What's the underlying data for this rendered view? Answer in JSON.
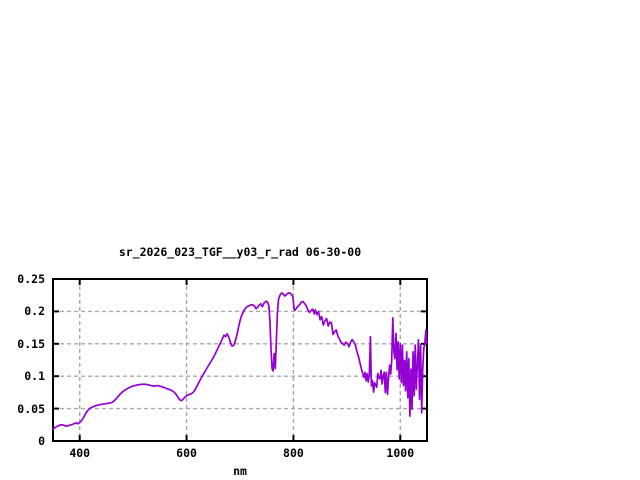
{
  "window": {
    "background": "#ffffff"
  },
  "chart_data": {
    "type": "line",
    "title": "sr_2026_023_TGF__y03_r_rad 06-30-00",
    "xlabel": "nm",
    "ylabel": "",
    "xlim": [
      350,
      1050
    ],
    "ylim": [
      0,
      0.25
    ],
    "xticks": [
      400,
      600,
      800,
      1000
    ],
    "xtick_labels": [
      "400",
      "600",
      "800",
      "1000"
    ],
    "yticks": [
      0,
      0.05,
      0.1,
      0.15,
      0.2,
      0.25
    ],
    "ytick_labels": [
      "0",
      "0.05",
      "0.1",
      "0.15",
      "0.2",
      "0.25"
    ],
    "grid": true,
    "legend_position": "none",
    "colors": {
      "line": "#9400d3",
      "grid": "#a8a8a8",
      "axis": "#000000",
      "background": "#ffffff"
    },
    "series": [
      {
        "name": "sr_2026_023_TGF__y03_r_rad 06-30-00",
        "points": [
          [
            350,
            0.018
          ],
          [
            355,
            0.0215
          ],
          [
            360,
            0.0235
          ],
          [
            365,
            0.025
          ],
          [
            370,
            0.0245
          ],
          [
            374,
            0.023
          ],
          [
            378,
            0.0235
          ],
          [
            382,
            0.0245
          ],
          [
            386,
            0.0255
          ],
          [
            390,
            0.027
          ],
          [
            394,
            0.028
          ],
          [
            397,
            0.0265
          ],
          [
            400,
            0.0285
          ],
          [
            404,
            0.032
          ],
          [
            408,
            0.0375
          ],
          [
            412,
            0.0435
          ],
          [
            416,
            0.048
          ],
          [
            420,
            0.051
          ],
          [
            424,
            0.0525
          ],
          [
            428,
            0.054
          ],
          [
            432,
            0.055
          ],
          [
            436,
            0.0558
          ],
          [
            440,
            0.0565
          ],
          [
            444,
            0.057
          ],
          [
            448,
            0.0575
          ],
          [
            452,
            0.058
          ],
          [
            456,
            0.0585
          ],
          [
            460,
            0.0592
          ],
          [
            464,
            0.0615
          ],
          [
            468,
            0.0648
          ],
          [
            472,
            0.069
          ],
          [
            476,
            0.0725
          ],
          [
            480,
            0.0758
          ],
          [
            484,
            0.0782
          ],
          [
            488,
            0.0802
          ],
          [
            492,
            0.082
          ],
          [
            496,
            0.0836
          ],
          [
            500,
            0.0848
          ],
          [
            504,
            0.0858
          ],
          [
            508,
            0.0866
          ],
          [
            512,
            0.0871
          ],
          [
            516,
            0.0875
          ],
          [
            520,
            0.0877
          ],
          [
            524,
            0.0874
          ],
          [
            528,
            0.0868
          ],
          [
            532,
            0.086
          ],
          [
            536,
            0.085
          ],
          [
            540,
            0.0845
          ],
          [
            544,
            0.0855
          ],
          [
            548,
            0.0852
          ],
          [
            552,
            0.0842
          ],
          [
            556,
            0.083
          ],
          [
            560,
            0.0818
          ],
          [
            564,
            0.0805
          ],
          [
            568,
            0.0793
          ],
          [
            572,
            0.078
          ],
          [
            576,
            0.076
          ],
          [
            580,
            0.0725
          ],
          [
            584,
            0.0675
          ],
          [
            588,
            0.063
          ],
          [
            591,
            0.0625
          ],
          [
            594,
            0.0652
          ],
          [
            597,
            0.0675
          ],
          [
            600,
            0.0698
          ],
          [
            603,
            0.0712
          ],
          [
            606,
            0.072
          ],
          [
            609,
            0.073
          ],
          [
            612,
            0.0748
          ],
          [
            615,
            0.078
          ],
          [
            618,
            0.0825
          ],
          [
            621,
            0.0872
          ],
          [
            624,
            0.092
          ],
          [
            628,
            0.098
          ],
          [
            632,
            0.104
          ],
          [
            636,
            0.1095
          ],
          [
            640,
            0.115
          ],
          [
            644,
            0.1205
          ],
          [
            648,
            0.126
          ],
          [
            652,
            0.132
          ],
          [
            656,
            0.1385
          ],
          [
            660,
            0.1455
          ],
          [
            664,
            0.1525
          ],
          [
            667,
            0.158
          ],
          [
            670,
            0.1635
          ],
          [
            673,
            0.161
          ],
          [
            676,
            0.1655
          ],
          [
            679,
            0.16
          ],
          [
            682,
            0.1525
          ],
          [
            685,
            0.1465
          ],
          [
            688,
            0.1475
          ],
          [
            691,
            0.1535
          ],
          [
            694,
            0.163
          ],
          [
            697,
            0.1745
          ],
          [
            700,
            0.1855
          ],
          [
            703,
            0.1935
          ],
          [
            706,
            0.199
          ],
          [
            709,
            0.2035
          ],
          [
            712,
            0.2065
          ],
          [
            715,
            0.208
          ],
          [
            718,
            0.209
          ],
          [
            721,
            0.2105
          ],
          [
            724,
            0.2098
          ],
          [
            727,
            0.2085
          ],
          [
            730,
            0.2042
          ],
          [
            733,
            0.2065
          ],
          [
            736,
            0.2095
          ],
          [
            739,
            0.2118
          ],
          [
            742,
            0.2072
          ],
          [
            745,
            0.2128
          ],
          [
            748,
            0.2155
          ],
          [
            751,
            0.2152
          ],
          [
            754,
            0.2085
          ],
          [
            756,
            0.186
          ],
          [
            758,
            0.142
          ],
          [
            760,
            0.112
          ],
          [
            762,
            0.108
          ],
          [
            764,
            0.135
          ],
          [
            766,
            0.112
          ],
          [
            768,
            0.152
          ],
          [
            770,
            0.197
          ],
          [
            772,
            0.2185
          ],
          [
            775,
            0.2255
          ],
          [
            778,
            0.2285
          ],
          [
            781,
            0.2265
          ],
          [
            784,
            0.2238
          ],
          [
            787,
            0.2262
          ],
          [
            790,
            0.2282
          ],
          [
            793,
            0.2285
          ],
          [
            796,
            0.2262
          ],
          [
            799,
            0.2225
          ],
          [
            801,
            0.2045
          ],
          [
            803,
            0.2015
          ],
          [
            806,
            0.2055
          ],
          [
            809,
            0.2085
          ],
          [
            812,
            0.2108
          ],
          [
            815,
            0.2145
          ],
          [
            818,
            0.2152
          ],
          [
            821,
            0.2122
          ],
          [
            824,
            0.2085
          ],
          [
            827,
            0.2022
          ],
          [
            830,
            0.1985
          ],
          [
            833,
            0.2012
          ],
          [
            836,
            0.2035
          ],
          [
            839,
            0.196
          ],
          [
            841,
            0.2027
          ],
          [
            844,
            0.195
          ],
          [
            847,
            0.2
          ],
          [
            850,
            0.187
          ],
          [
            853,
            0.192
          ],
          [
            856,
            0.179
          ],
          [
            859,
            0.1855
          ],
          [
            862,
            0.189
          ],
          [
            865,
            0.1775
          ],
          [
            868,
            0.1835
          ],
          [
            871,
            0.1825
          ],
          [
            874,
            0.1645
          ],
          [
            877,
            0.1685
          ],
          [
            880,
            0.1715
          ],
          [
            883,
            0.1625
          ],
          [
            886,
            0.1575
          ],
          [
            889,
            0.1525
          ],
          [
            892,
            0.1505
          ],
          [
            895,
            0.148
          ],
          [
            898,
            0.1525
          ],
          [
            901,
            0.1505
          ],
          [
            904,
            0.1455
          ],
          [
            907,
            0.1525
          ],
          [
            910,
            0.1565
          ],
          [
            913,
            0.1525
          ],
          [
            916,
            0.148
          ],
          [
            919,
            0.1375
          ],
          [
            922,
            0.13
          ],
          [
            925,
            0.119
          ],
          [
            928,
            0.109
          ],
          [
            930,
            0.1035
          ],
          [
            932,
            0.098
          ],
          [
            934,
            0.106
          ],
          [
            936,
            0.093
          ],
          [
            938,
            0.104
          ],
          [
            940,
            0.091
          ],
          [
            942,
            0.101
          ],
          [
            944,
            0.161
          ],
          [
            946,
            0.085
          ],
          [
            948,
            0.093
          ],
          [
            950,
            0.0755
          ],
          [
            952,
            0.09
          ],
          [
            954,
            0.0865
          ],
          [
            956,
            0.083
          ],
          [
            958,
            0.104
          ],
          [
            960,
            0.0975
          ],
          [
            962,
            0.096
          ],
          [
            964,
            0.109
          ],
          [
            966,
            0.088
          ],
          [
            968,
            0.101
          ],
          [
            970,
            0.106
          ],
          [
            972,
            0.075
          ],
          [
            974,
            0.106
          ],
          [
            976,
            0.072
          ],
          [
            978,
            0.096
          ],
          [
            980,
            0.117
          ],
          [
            982,
            0.1035
          ],
          [
            984,
            0.1245
          ],
          [
            986,
            0.19
          ],
          [
            988,
            0.1375
          ],
          [
            990,
            0.127
          ],
          [
            992,
            0.166
          ],
          [
            994,
            0.11
          ],
          [
            996,
            0.153
          ],
          [
            998,
            0.096
          ],
          [
            1000,
            0.15
          ],
          [
            1002,
            0.09
          ],
          [
            1004,
            0.148
          ],
          [
            1006,
            0.0855
          ],
          [
            1008,
            0.1245
          ],
          [
            1010,
            0.0775
          ],
          [
            1012,
            0.1375
          ],
          [
            1014,
            0.067
          ],
          [
            1016,
            0.127
          ],
          [
            1018,
            0.0385
          ],
          [
            1020,
            0.111
          ],
          [
            1022,
            0.049
          ],
          [
            1024,
            0.1375
          ],
          [
            1026,
            0.07
          ],
          [
            1028,
            0.148
          ],
          [
            1030,
            0.08
          ],
          [
            1032,
            0.12
          ],
          [
            1034,
            0.156
          ],
          [
            1036,
            0.0645
          ],
          [
            1038,
            0.148
          ],
          [
            1040,
            0.0435
          ],
          [
            1042,
            0.11
          ],
          [
            1044,
            0.1425
          ],
          [
            1046,
            0.153
          ],
          [
            1048,
            0.171
          ],
          [
            1050,
            0.15
          ]
        ]
      }
    ]
  }
}
